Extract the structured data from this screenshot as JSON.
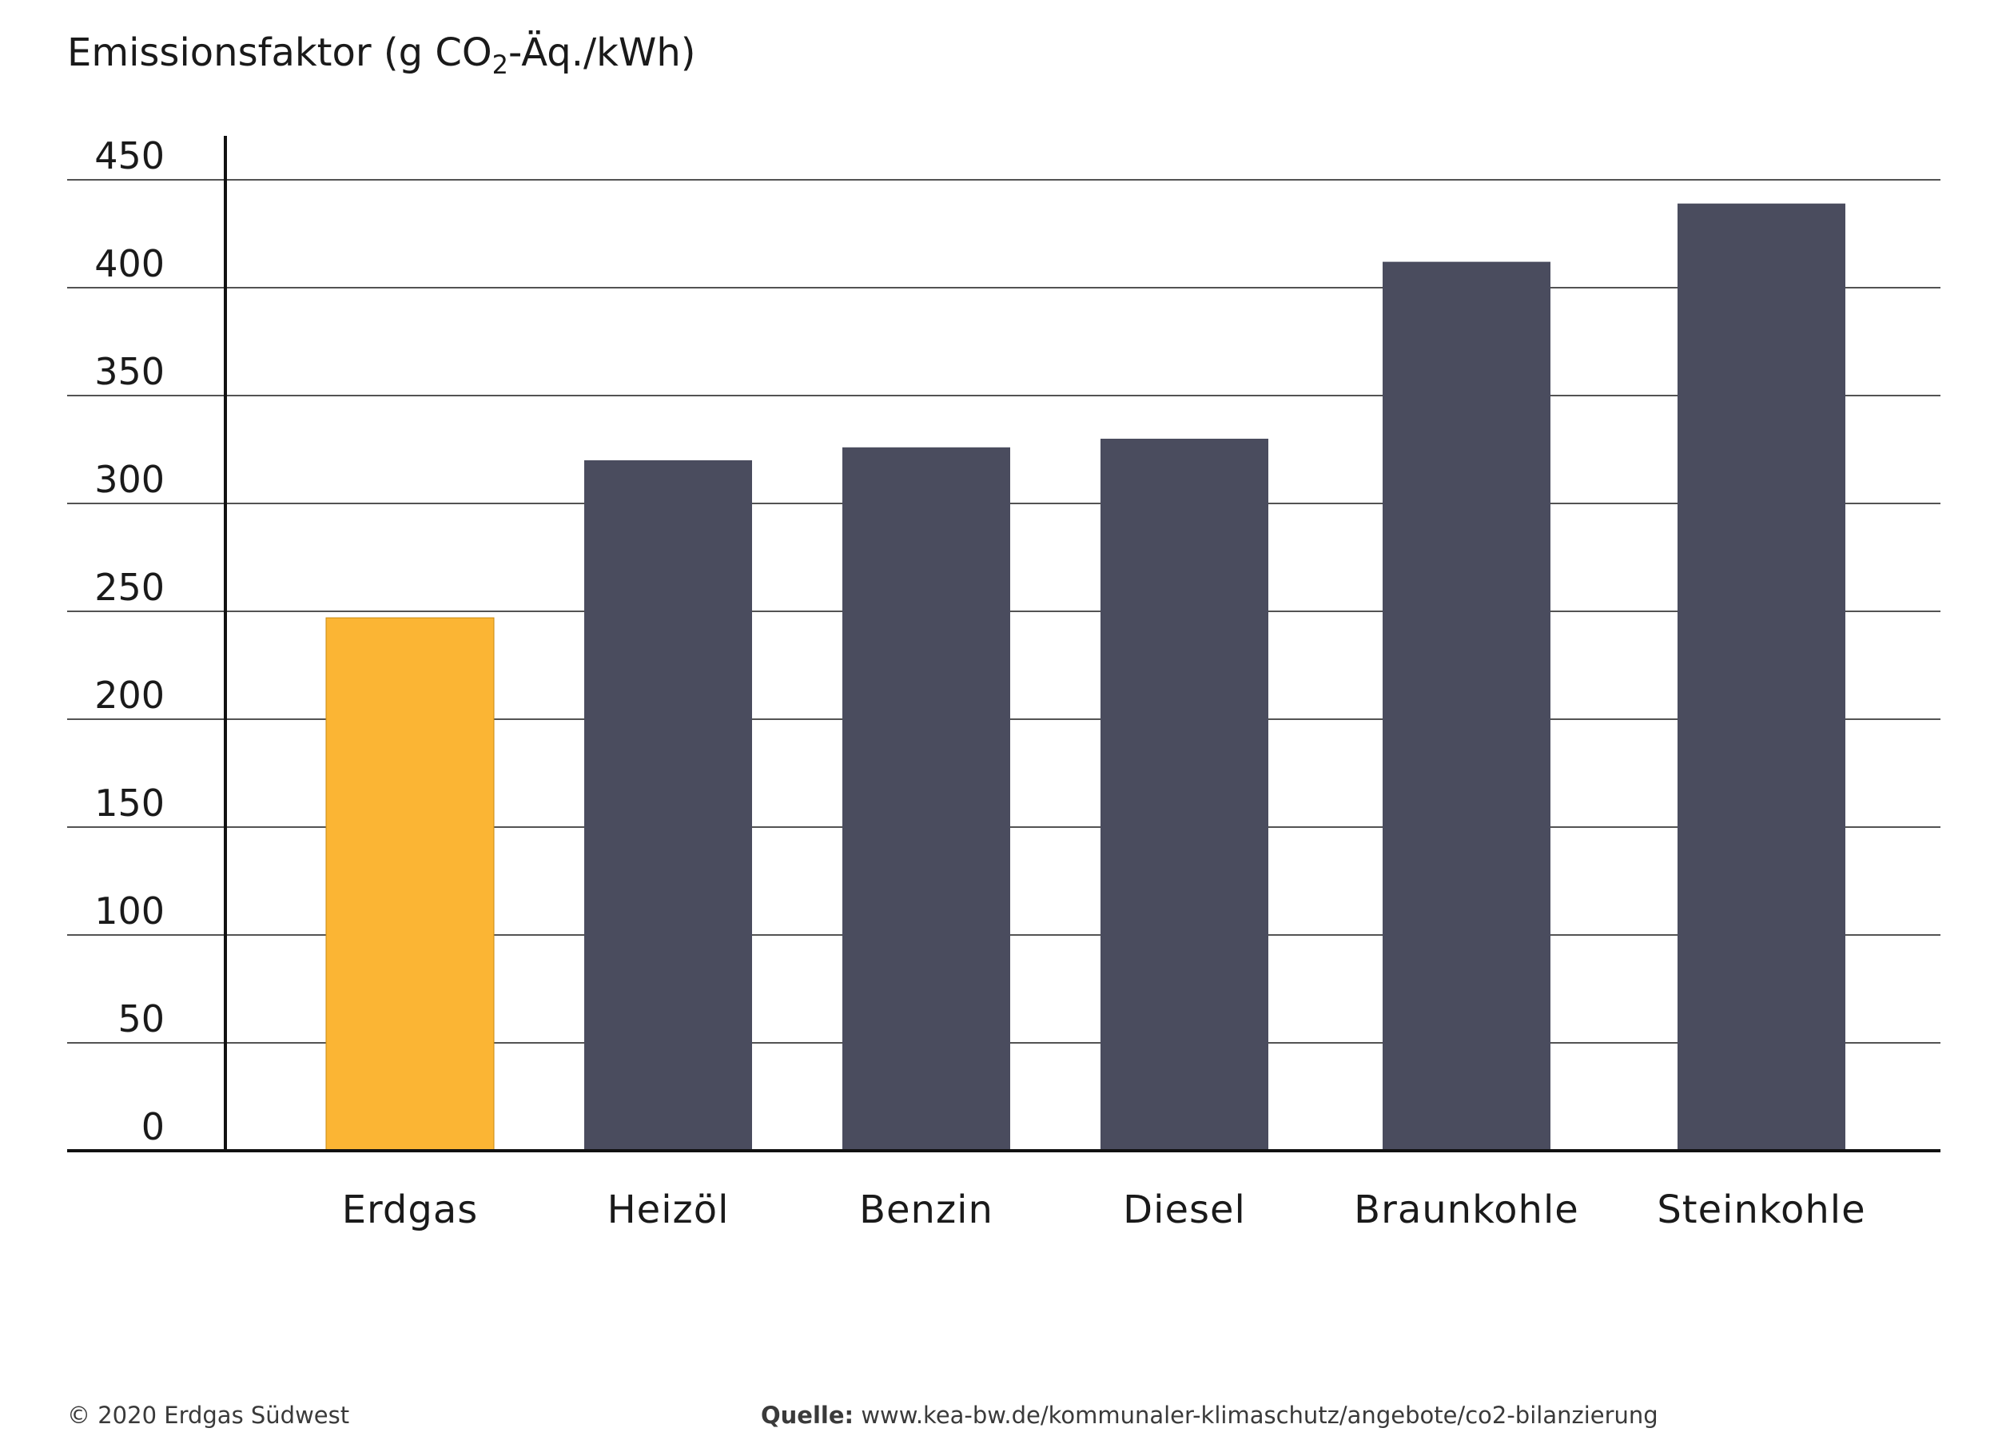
{
  "chart_data": {
    "type": "bar",
    "title": "",
    "ylabel_parts": {
      "before": "Emissionsfaktor (g CO",
      "sub": "2",
      "after": "-Äq./kWh)"
    },
    "xlabel": "",
    "categories": [
      "Erdgas",
      "Heizöl",
      "Benzin",
      "Diesel",
      "Braunkohle",
      "Steinkohle"
    ],
    "values": [
      247,
      320,
      326,
      330,
      412,
      439
    ],
    "bar_colors": [
      "#FBB534",
      "#4A4C5E",
      "#4A4C5E",
      "#4A4C5E",
      "#4A4C5E",
      "#4A4C5E"
    ],
    "yticks": [
      "0",
      "50",
      "100",
      "150",
      "200",
      "250",
      "300",
      "350",
      "400",
      "450"
    ],
    "ylim": [
      0,
      450
    ],
    "grid": true,
    "legend": "none"
  },
  "footer": {
    "copyright": "© 2020 Erdgas Südwest",
    "source_label": "Quelle:",
    "source_url": "www.kea-bw.de/kommunaler-klimaschutz/angebote/co2-bilanzierung"
  },
  "colors": {
    "accent": "#FBB534",
    "bar": "#4A4C5E",
    "grid": "#1a1a1a"
  }
}
